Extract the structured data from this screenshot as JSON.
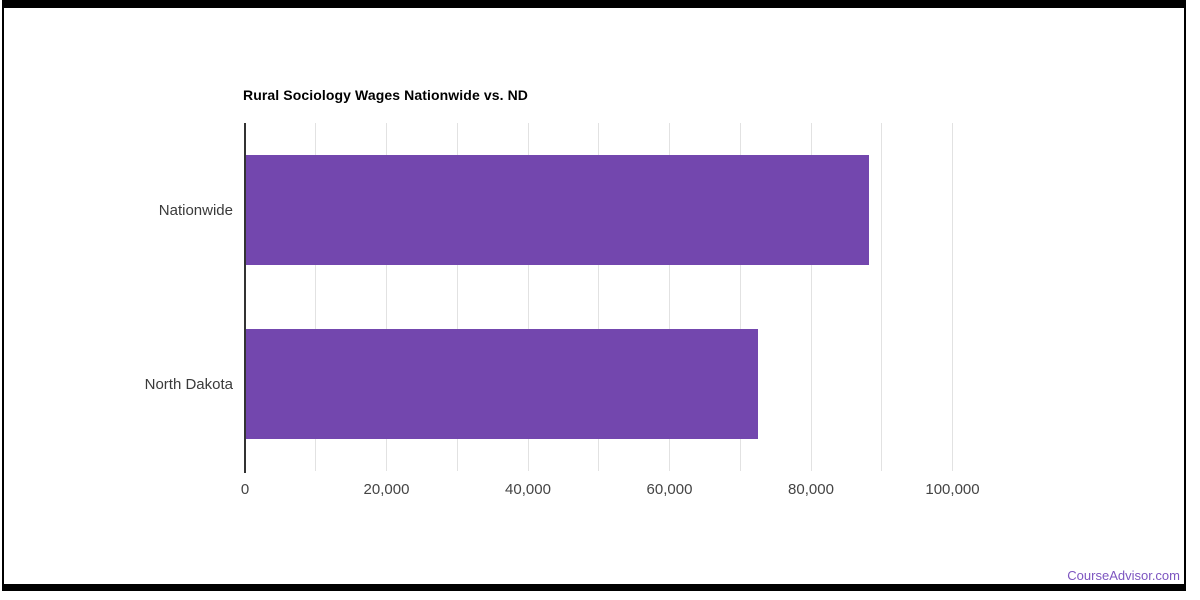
{
  "page": {
    "watermark": "CourseAdvisor.com"
  },
  "chart_data": {
    "type": "bar",
    "orientation": "horizontal",
    "title": "Rural Sociology Wages Nationwide vs. ND",
    "categories": [
      "Nationwide",
      "North Dakota"
    ],
    "values": [
      88000,
      72400
    ],
    "axis": {
      "min": 0,
      "max": 100000,
      "gridline_interval": 10000,
      "label_interval": 20000,
      "tick_labels": [
        "0",
        "20,000",
        "40,000",
        "60,000",
        "80,000",
        "100,000"
      ]
    },
    "grid": true,
    "legend": "none",
    "colors": {
      "bar": "#7347ae",
      "gridline": "#e2e2e2",
      "axis_line": "#333333",
      "tick_label": "#444444",
      "category_label": "#3a3a3a",
      "title": "#000000",
      "watermark": "#7d55c0",
      "frame": "#000000"
    }
  }
}
